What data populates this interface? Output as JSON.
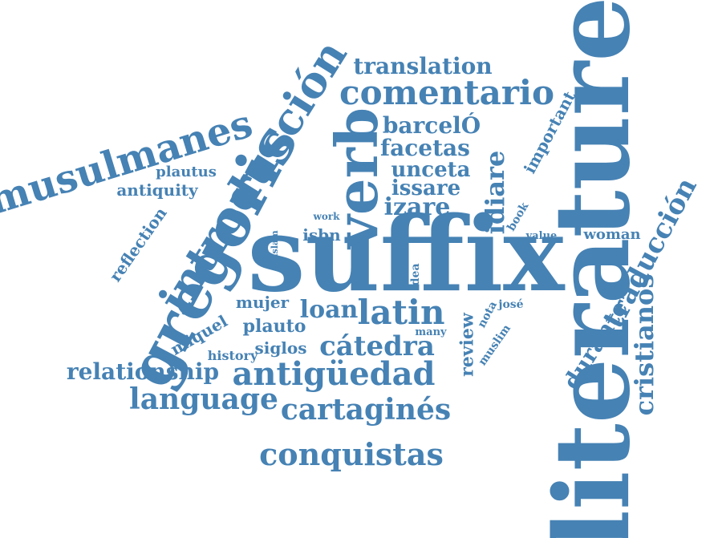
{
  "color": "#4682b4",
  "words": [
    "literature",
    "suffix",
    "gregoris",
    "verb",
    "introducción",
    "musulmanes",
    "comentario",
    "translation",
    "barcelÓ",
    "facetas",
    "unceta",
    "issare",
    "izare",
    "idiare",
    "important",
    "cristianos",
    "traducción",
    "durante",
    "plautus",
    "antiquity",
    "reflection",
    "work",
    "islam",
    "isbn",
    "idea",
    "book",
    "value",
    "woman",
    "nota",
    "josé",
    "review",
    "muslim",
    "many",
    "latin",
    "loan",
    "mujer",
    "miquel",
    "plauto",
    "history",
    "siglos",
    "cátedra",
    "relationship",
    "antigüedad",
    "language",
    "cartaginés",
    "conquistas"
  ]
}
